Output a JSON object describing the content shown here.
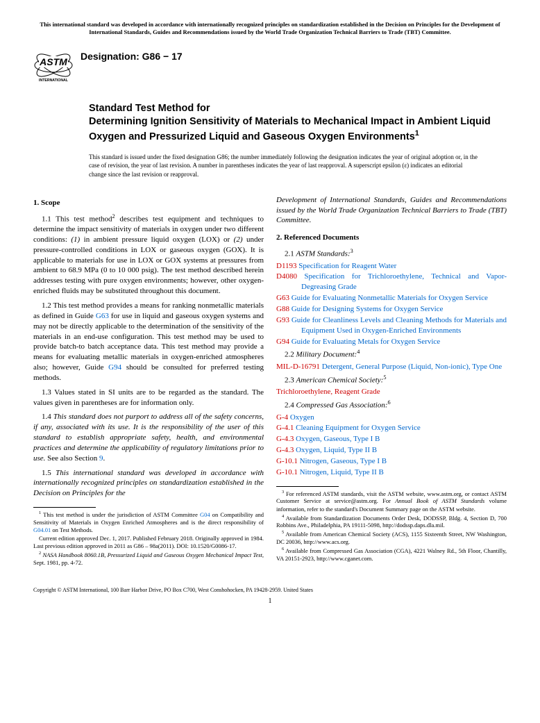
{
  "header_note": "This international standard was developed in accordance with internationally recognized principles on standardization established in the Decision on Principles for the Development of International Standards, Guides and Recommendations issued by the World Trade Organization Technical Barriers to Trade (TBT) Committee.",
  "logo": {
    "top_text": "ASTM",
    "bottom_text": "INTERNATIONAL"
  },
  "designation": "Designation: G86 − 17",
  "title_pre": "Standard Test Method for",
  "title_main": "Determining Ignition Sensitivity of Materials to Mechanical Impact in Ambient Liquid Oxygen and Pressurized Liquid and Gaseous Oxygen Environments",
  "title_sup": "1",
  "issue_note": "This standard is issued under the fixed designation G86; the number immediately following the designation indicates the year of original adoption or, in the case of revision, the year of last revision. A number in parentheses indicates the year of last reapproval. A superscript epsilon (ε) indicates an editorial change since the last revision or reapproval.",
  "scope_head": "1. Scope",
  "p11_a": "1.1 This test method",
  "p11_sup": "2",
  "p11_b": " describes test equipment and techniques to determine the impact sensitivity of materials in oxygen under two different conditions: ",
  "p11_c": "(1)",
  "p11_d": " in ambient pressure liquid oxygen (LOX) or ",
  "p11_e": "(2)",
  "p11_f": " under pressure-controlled conditions in LOX or gaseous oxygen (GOX). It is applicable to materials for use in LOX or GOX systems at pressures from ambient to 68.9 MPa (0 to 10 000 psig). The test method described herein addresses testing with pure oxygen environments; however, other oxygen-enriched fluids may be substituted throughout this document.",
  "p12_a": "1.2 This test method provides a means for ranking nonmetallic materials as defined in Guide ",
  "p12_link1": "G63",
  "p12_b": " for use in liquid and gaseous oxygen systems and may not be directly applicable to the determination of the sensitivity of the materials in an end-use configuration. This test method may be used to provide batch-to batch acceptance data. This test method may provide a means for evaluating metallic materials in oxygen-enriched atmospheres also; however, Guide ",
  "p12_link2": "G94",
  "p12_c": " should be consulted for preferred testing methods.",
  "p13": "1.3 Values stated in SI units are to be regarded as the standard. The values given in parentheses are for information only.",
  "p14_a": "1.4 ",
  "p14_b": "This standard does not purport to address all of the safety concerns, if any, associated with its use. It is the responsibility of the user of this standard to establish appropriate safety, health, and environmental practices and determine the applicability of regulatory limitations prior to use.",
  "p14_c": " See also Section ",
  "p14_link": "9",
  "p14_d": ".",
  "p15_a": "1.5 ",
  "p15_b": "This international standard was developed in accordance with internationally recognized principles on standardization established in the Decision on Principles for the",
  "p15_cont": "Development of International Standards, Guides and Recommendations issued by the World Trade Organization Technical Barriers to Trade (TBT) Committee.",
  "ref_head": "2. Referenced Documents",
  "sub21_a": "2.1 ",
  "sub21_b": "ASTM Standards:",
  "sub21_sup": "3",
  "refs_astm": [
    {
      "code": "D1193",
      "desc": "Specification for Reagent Water"
    },
    {
      "code": "D4080",
      "desc": "Specification for Trichloroethylene, Technical and Vapor-Degreasing Grade"
    },
    {
      "code": "G63",
      "desc": "Guide for Evaluating Nonmetallic Materials for Oxygen Service"
    },
    {
      "code": "G88",
      "desc": "Guide for Designing Systems for Oxygen Service"
    },
    {
      "code": "G93",
      "desc": "Guide for Cleanliness Levels and Cleaning Methods for Materials and Equipment Used in Oxygen-Enriched Environments"
    },
    {
      "code": "G94",
      "desc": "Guide for Evaluating Metals for Oxygen Service"
    }
  ],
  "sub22_a": "2.2 ",
  "sub22_b": "Military Document:",
  "sub22_sup": "4",
  "refs_mil": [
    {
      "code": "MIL-D-16791",
      "desc": "Detergent, General Purpose (Liquid, Non-ionic), Type One"
    }
  ],
  "sub23_a": "2.3 ",
  "sub23_b": "American Chemical Society:",
  "sub23_sup": "5",
  "refs_acs": [
    {
      "code": "",
      "desc": "Trichloroethylene, Reagent Grade"
    }
  ],
  "sub24_a": "2.4 ",
  "sub24_b": "Compressed Gas Association:",
  "sub24_sup": "6",
  "refs_cga": [
    {
      "code": "G-4",
      "desc": "Oxygen"
    },
    {
      "code": "G-4.1",
      "desc": "Cleaning Equipment for Oxygen Service"
    },
    {
      "code": "G-4.3",
      "desc": " Oxygen, Gaseous, Type I B"
    },
    {
      "code": "G-4.3",
      "desc": "Oxygen, Liquid, Type II B"
    },
    {
      "code": "G-10.1",
      "desc": "Nitrogen, Gaseous, Type I B"
    },
    {
      "code": "G-10.1",
      "desc": "Nitrogen, Liquid, Type II B"
    }
  ],
  "fn1_a": "1",
  "fn1_b": " This test method is under the jurisdiction of ASTM Committee ",
  "fn1_link1": "G04",
  "fn1_c": " on Compatibility and Sensitivity of Materials in Oxygen Enriched Atmospheres and is the direct responsibility of ",
  "fn1_link2": "G04.01",
  "fn1_d": " on Test Methods.",
  "fn1e": "Current edition approved Dec. 1, 2017. Published February 2018. Originally approved in 1984. Last previous edition approved in 2011 as G86 – 98a(2011). DOI: 10.1520/G0086-17.",
  "fn2_a": "2",
  "fn2_b": " ",
  "fn2_c": "NASA Handbook 8060.1B, Pressurized Liquid and Gaseous Oxygen Mechanical Impact Test,",
  "fn2_d": " Sept. 1981, pp. 4-72.",
  "fn3_a": "3",
  "fn3_b": " For referenced ASTM standards, visit the ASTM website, www.astm.org, or contact ASTM Customer Service at service@astm.org. For ",
  "fn3_c": "Annual Book of ASTM Standards",
  "fn3_d": " volume information, refer to the standard's Document Summary page on the ASTM website.",
  "fn4_a": "4",
  "fn4_b": " Available from Standardization Documents Order Desk, DODSSP, Bldg. 4, Section D, 700 Robbins Ave., Philadelphia, PA 19111-5098, http://dodssp.daps.dla.mil.",
  "fn5_a": "5",
  "fn5_b": " Available from American Chemical Society (ACS), 1155 Sixteenth Street, NW Washington, DC 20036, http://www.acs.org.",
  "fn6_a": "6",
  "fn6_b": " Available from Compressed Gas Association (CGA), 4221 Walney Rd., 5th Floor, Chantilly, VA 20151-2923, http://www.cganet.com.",
  "copyright": "Copyright © ASTM International, 100 Barr Harbor Drive, PO Box C700, West Conshohocken, PA 19428-2959. United States",
  "pagenum": "1"
}
